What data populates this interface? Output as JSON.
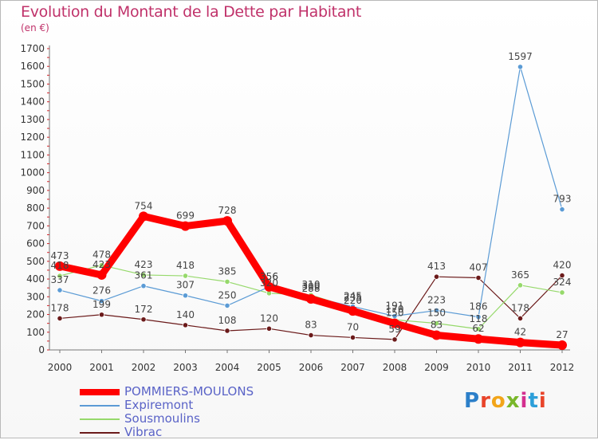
{
  "title": "Evolution du Montant de la Dette par Habitant",
  "unit": "(en €)",
  "logo": {
    "text": "Proxiti",
    "colors": [
      "#2c7fc9",
      "#e8442a",
      "#f2a51a",
      "#79b72a",
      "#d42f8f",
      "#2c9fd9",
      "#e8442a"
    ]
  },
  "chart_data": {
    "type": "line",
    "title": "Evolution du Montant de la Dette par Habitant",
    "ylabel": "(en €)",
    "x": [
      "2000",
      "2001",
      "2002",
      "2003",
      "2004",
      "2005",
      "2006",
      "2007",
      "2008",
      "2009",
      "2010",
      "2011",
      "2012"
    ],
    "ylim": [
      0,
      1700
    ],
    "yticks": [
      0,
      100,
      200,
      300,
      400,
      500,
      600,
      700,
      800,
      900,
      1000,
      1100,
      1200,
      1300,
      1400,
      1500,
      1600,
      1700
    ],
    "grid": false,
    "legend_position": "bottom-left",
    "series": [
      {
        "name": "POMMIERS-MOULONS",
        "color": "#ff0000",
        "values": [
          473,
          423,
          754,
          699,
          728,
          356,
          288,
          220,
          150,
          83,
          62,
          42,
          27
        ]
      },
      {
        "name": "Expiremont",
        "color": "#5b9bd5",
        "values": [
          337,
          276,
          361,
          307,
          250,
          356,
          300,
          245,
          191,
          223,
          186,
          1597,
          793
        ]
      },
      {
        "name": "Sousmoulins",
        "color": "#96d96b",
        "values": [
          418,
          478,
          423,
          418,
          385,
          320,
          310,
          235,
          170,
          150,
          118,
          365,
          324
        ]
      },
      {
        "name": "Vibrac",
        "color": "#6b1a1a",
        "values": [
          178,
          199,
          172,
          140,
          108,
          120,
          83,
          70,
          59,
          413,
          407,
          178,
          420
        ]
      }
    ]
  }
}
